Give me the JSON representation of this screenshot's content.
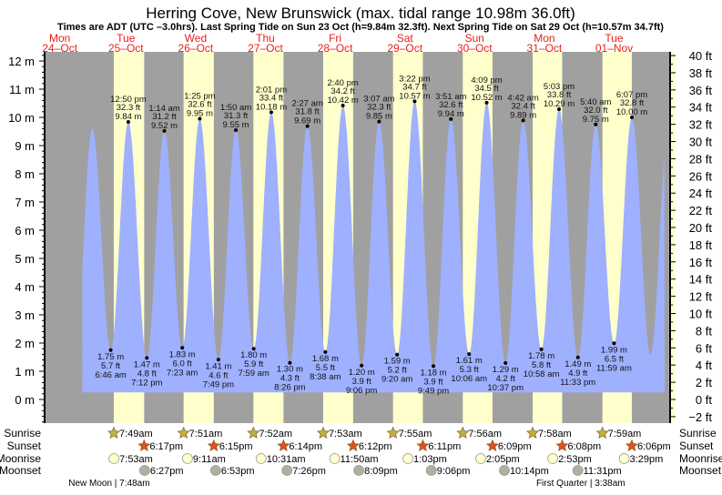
{
  "chart_data": {
    "type": "area",
    "title": "Herring Cove, New Brunswick (max. tidal range 10.98m 36.0ft)",
    "subtitle": "Times are ADT (UTC –3.0hrs). Last Spring Tide on Sun 23 Oct (h=9.84m 32.3ft). Next Spring Tide on Sat 29 Oct (h=10.57m 34.7ft)",
    "days": [
      {
        "dow": "Mon",
        "date": "24–Oct"
      },
      {
        "dow": "Tue",
        "date": "25–Oct"
      },
      {
        "dow": "Wed",
        "date": "26–Oct"
      },
      {
        "dow": "Thu",
        "date": "27–Oct"
      },
      {
        "dow": "Fri",
        "date": "28–Oct"
      },
      {
        "dow": "Sat",
        "date": "29–Oct"
      },
      {
        "dow": "Sun",
        "date": "30–Oct"
      },
      {
        "dow": "Mon",
        "date": "31–Oct"
      },
      {
        "dow": "Tue",
        "date": "01–Nov"
      }
    ],
    "y_left": {
      "unit": "m",
      "ylim": [
        -0.84,
        12.3
      ],
      "ticks": [
        "12 m",
        "11 m",
        "10 m",
        "9 m",
        "8 m",
        "7 m",
        "6 m",
        "5 m",
        "4 m",
        "3 m",
        "2 m",
        "1 m",
        "0 m"
      ],
      "tick_values": [
        12,
        11,
        10,
        9,
        8,
        7,
        6,
        5,
        4,
        3,
        2,
        1,
        0
      ]
    },
    "y_right": {
      "unit": "ft",
      "ticks": [
        "40 ft",
        "38 ft",
        "36 ft",
        "34 ft",
        "32 ft",
        "30 ft",
        "28 ft",
        "26 ft",
        "24 ft",
        "22 ft",
        "20 ft",
        "18 ft",
        "16 ft",
        "14 ft",
        "12 ft",
        "10 ft",
        "8 ft",
        "6 ft",
        "4 ft",
        "2 ft",
        "0 ft",
        "−2 ft"
      ],
      "tick_values": [
        40,
        38,
        36,
        34,
        32,
        30,
        28,
        26,
        24,
        22,
        20,
        18,
        16,
        14,
        12,
        10,
        8,
        6,
        4,
        2,
        0,
        -2
      ]
    },
    "curve_extra": [
      {
        "day": 0,
        "hour": 18.5,
        "m": 1.6
      },
      {
        "day": 1,
        "hour": 0.42,
        "m": 9.6
      },
      {
        "day": 9,
        "hour": 0.5,
        "m": 1.6
      },
      {
        "day": 9,
        "hour": 6.7,
        "m": 9.6
      }
    ],
    "extremes": [
      {
        "day": 1,
        "hour": 6.77,
        "type": "L",
        "time": "6:46 am",
        "m": "1.75 m",
        "ft": "5.7 ft",
        "v": 1.75
      },
      {
        "day": 1,
        "hour": 12.83,
        "type": "H",
        "time": "12:50 pm",
        "m": "9.84 m",
        "ft": "32.3 ft",
        "v": 9.84
      },
      {
        "day": 1,
        "hour": 19.2,
        "type": "L",
        "time": "7:12 pm",
        "m": "1.47 m",
        "ft": "4.8 ft",
        "v": 1.47
      },
      {
        "day": 2,
        "hour": 1.23,
        "type": "H",
        "time": "1:14 am",
        "m": "9.52 m",
        "ft": "31.2 ft",
        "v": 9.52
      },
      {
        "day": 2,
        "hour": 7.38,
        "type": "L",
        "time": "7:23 am",
        "m": "1.83 m",
        "ft": "6.0 ft",
        "v": 1.83
      },
      {
        "day": 2,
        "hour": 13.42,
        "type": "H",
        "time": "1:25 pm",
        "m": "9.95 m",
        "ft": "32.6 ft",
        "v": 9.95
      },
      {
        "day": 2,
        "hour": 19.82,
        "type": "L",
        "time": "7:49 pm",
        "m": "1.41 m",
        "ft": "4.6 ft",
        "v": 1.41
      },
      {
        "day": 3,
        "hour": 1.83,
        "type": "H",
        "time": "1:50 am",
        "m": "9.55 m",
        "ft": "31.3 ft",
        "v": 9.55
      },
      {
        "day": 3,
        "hour": 7.98,
        "type": "L",
        "time": "7:59 am",
        "m": "1.80 m",
        "ft": "5.9 ft",
        "v": 1.8
      },
      {
        "day": 3,
        "hour": 14.02,
        "type": "H",
        "time": "2:01 pm",
        "m": "10.18 m",
        "ft": "33.4 ft",
        "v": 10.18
      },
      {
        "day": 3,
        "hour": 20.43,
        "type": "L",
        "time": "8:26 pm",
        "m": "1.30 m",
        "ft": "4.3 ft",
        "v": 1.3
      },
      {
        "day": 4,
        "hour": 2.45,
        "type": "H",
        "time": "2:27 am",
        "m": "9.69 m",
        "ft": "31.8 ft",
        "v": 9.69
      },
      {
        "day": 4,
        "hour": 8.63,
        "type": "L",
        "time": "8:38 am",
        "m": "1.68 m",
        "ft": "5.5 ft",
        "v": 1.68
      },
      {
        "day": 4,
        "hour": 14.67,
        "type": "H",
        "time": "2:40 pm",
        "m": "10.42 m",
        "ft": "34.2 ft",
        "v": 10.42
      },
      {
        "day": 4,
        "hour": 21.1,
        "type": "L",
        "time": "9:06 pm",
        "m": "1.20 m",
        "ft": "3.9 ft",
        "v": 1.2
      },
      {
        "day": 5,
        "hour": 3.12,
        "type": "H",
        "time": "3:07 am",
        "m": "9.85 m",
        "ft": "32.3 ft",
        "v": 9.85
      },
      {
        "day": 5,
        "hour": 9.33,
        "type": "L",
        "time": "9:20 am",
        "m": "1.59 m",
        "ft": "5.2 ft",
        "v": 1.59
      },
      {
        "day": 5,
        "hour": 15.37,
        "type": "H",
        "time": "3:22 pm",
        "m": "10.57 m",
        "ft": "34.7 ft",
        "v": 10.57
      },
      {
        "day": 5,
        "hour": 21.82,
        "type": "L",
        "time": "9:49 pm",
        "m": "1.18 m",
        "ft": "3.9 ft",
        "v": 1.18
      },
      {
        "day": 6,
        "hour": 3.85,
        "type": "H",
        "time": "3:51 am",
        "m": "9.94 m",
        "ft": "32.6 ft",
        "v": 9.94
      },
      {
        "day": 6,
        "hour": 10.1,
        "type": "L",
        "time": "10:06 am",
        "m": "1.61 m",
        "ft": "5.3 ft",
        "v": 1.61
      },
      {
        "day": 6,
        "hour": 16.15,
        "type": "H",
        "time": "4:09 pm",
        "m": "10.52 m",
        "ft": "34.5 ft",
        "v": 10.52
      },
      {
        "day": 6,
        "hour": 22.62,
        "type": "L",
        "time": "10:37 pm",
        "m": "1.29 m",
        "ft": "4.2 ft",
        "v": 1.29
      },
      {
        "day": 7,
        "hour": 4.7,
        "type": "H",
        "time": "4:42 am",
        "m": "9.89 m",
        "ft": "32.4 ft",
        "v": 9.89
      },
      {
        "day": 7,
        "hour": 10.97,
        "type": "L",
        "time": "10:58 am",
        "m": "1.78 m",
        "ft": "5.8 ft",
        "v": 1.78
      },
      {
        "day": 7,
        "hour": 17.05,
        "type": "H",
        "time": "5:03 pm",
        "m": "10.29 m",
        "ft": "33.8 ft",
        "v": 10.29
      },
      {
        "day": 7,
        "hour": 23.55,
        "type": "L",
        "time": "11:33 pm",
        "m": "1.49 m",
        "ft": "4.9 ft",
        "v": 1.49
      },
      {
        "day": 8,
        "hour": 5.67,
        "type": "H",
        "time": "5:40 am",
        "m": "9.75 m",
        "ft": "32.0 ft",
        "v": 9.75
      },
      {
        "day": 8,
        "hour": 11.98,
        "type": "L",
        "time": "11:59 am",
        "m": "1.99 m",
        "ft": "6.5 ft",
        "v": 1.99
      },
      {
        "day": 8,
        "hour": 18.12,
        "type": "H",
        "time": "6:07 pm",
        "m": "10.00 m",
        "ft": "32.8 ft",
        "v": 10.0
      }
    ],
    "row_labels": {
      "sunrise": "Sunrise",
      "sunset": "Sunset",
      "moonrise": "Moonrise",
      "moonset": "Moonset"
    },
    "sunrise": [
      {
        "day": 1,
        "hour": 7.82,
        "label": "7:49am"
      },
      {
        "day": 2,
        "hour": 7.85,
        "label": "7:51am"
      },
      {
        "day": 3,
        "hour": 7.87,
        "label": "7:52am"
      },
      {
        "day": 4,
        "hour": 7.88,
        "label": "7:53am"
      },
      {
        "day": 5,
        "hour": 7.92,
        "label": "7:55am"
      },
      {
        "day": 6,
        "hour": 7.93,
        "label": "7:56am"
      },
      {
        "day": 7,
        "hour": 7.97,
        "label": "7:58am"
      },
      {
        "day": 8,
        "hour": 7.98,
        "label": "7:59am"
      }
    ],
    "sunset": [
      {
        "day": 1,
        "hour": 18.28,
        "label": "6:17pm"
      },
      {
        "day": 2,
        "hour": 18.25,
        "label": "6:15pm"
      },
      {
        "day": 3,
        "hour": 18.23,
        "label": "6:14pm"
      },
      {
        "day": 4,
        "hour": 18.2,
        "label": "6:12pm"
      },
      {
        "day": 5,
        "hour": 18.18,
        "label": "6:11pm"
      },
      {
        "day": 6,
        "hour": 18.15,
        "label": "6:09pm"
      },
      {
        "day": 7,
        "hour": 18.13,
        "label": "6:08pm"
      },
      {
        "day": 8,
        "hour": 18.1,
        "label": "6:06pm"
      }
    ],
    "moonrise": [
      {
        "day": 1,
        "hour": 7.88,
        "label": "7:53am"
      },
      {
        "day": 2,
        "hour": 9.18,
        "label": "9:11am"
      },
      {
        "day": 3,
        "hour": 10.52,
        "label": "10:31am"
      },
      {
        "day": 4,
        "hour": 11.83,
        "label": "11:50am"
      },
      {
        "day": 5,
        "hour": 13.05,
        "label": "1:03pm"
      },
      {
        "day": 6,
        "hour": 14.08,
        "label": "2:05pm"
      },
      {
        "day": 7,
        "hour": 14.88,
        "label": "2:53pm"
      },
      {
        "day": 8,
        "hour": 15.48,
        "label": "3:29pm"
      }
    ],
    "moonset": [
      {
        "day": 1,
        "hour": 18.45,
        "label": "6:27pm"
      },
      {
        "day": 2,
        "hour": 18.88,
        "label": "6:53pm"
      },
      {
        "day": 3,
        "hour": 19.43,
        "label": "7:26pm"
      },
      {
        "day": 4,
        "hour": 20.15,
        "label": "8:09pm"
      },
      {
        "day": 5,
        "hour": 21.1,
        "label": "9:06pm"
      },
      {
        "day": 6,
        "hour": 22.23,
        "label": "10:14pm"
      },
      {
        "day": 7,
        "hour": 23.52,
        "label": "11:31pm"
      }
    ],
    "moon_phases": [
      {
        "day": 1,
        "hour": 7.8,
        "label": "New Moon | 7:48am"
      },
      {
        "day": 8,
        "hour": 3.63,
        "label": "First Quarter | 3:38am"
      }
    ],
    "colors": {
      "water": "#9fb0ff",
      "night": "#a0a0a0",
      "day": "#ffffcc",
      "day_label": "#e8201a",
      "sunrise": "#c0b040",
      "sunset": "#e05020",
      "moonrise": "#ffffcc",
      "moonset": "#b0b0a0"
    }
  }
}
